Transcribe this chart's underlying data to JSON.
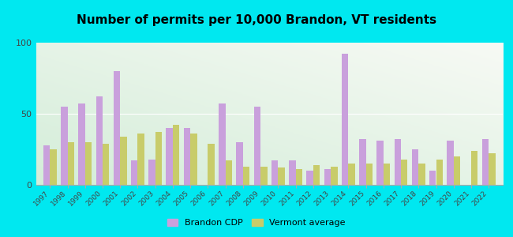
{
  "title": "Number of permits per 10,000 Brandon, VT residents",
  "years": [
    1997,
    1998,
    1999,
    2000,
    2001,
    2002,
    2003,
    2004,
    2005,
    2006,
    2007,
    2008,
    2009,
    2010,
    2011,
    2012,
    2013,
    2014,
    2015,
    2016,
    2017,
    2018,
    2019,
    2020,
    2021,
    2022
  ],
  "brandon": [
    28,
    55,
    57,
    62,
    80,
    17,
    18,
    40,
    40,
    0,
    57,
    30,
    55,
    17,
    17,
    10,
    11,
    92,
    32,
    31,
    32,
    25,
    10,
    31,
    0,
    32
  ],
  "vermont": [
    25,
    30,
    30,
    29,
    34,
    36,
    37,
    42,
    36,
    29,
    17,
    13,
    13,
    12,
    11,
    14,
    13,
    15,
    15,
    15,
    18,
    15,
    18,
    20,
    24,
    22
  ],
  "brandon_color": "#c9a0dc",
  "vermont_color": "#c8cc6a",
  "outer_bg": "#00e8f0",
  "ylim": [
    0,
    100
  ],
  "yticks": [
    0,
    50,
    100
  ],
  "bar_width": 0.38,
  "legend_brandon": "Brandon CDP",
  "legend_vermont": "Vermont average"
}
